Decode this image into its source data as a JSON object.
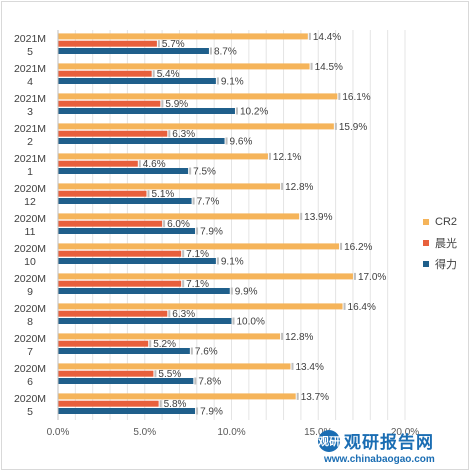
{
  "chart_data": {
    "type": "bar",
    "orientation": "horizontal",
    "categories": [
      [
        "2021M",
        "5"
      ],
      [
        "2021M",
        "4"
      ],
      [
        "2021M",
        "3"
      ],
      [
        "2021M",
        "2"
      ],
      [
        "2021M",
        "1"
      ],
      [
        "2020M",
        "12"
      ],
      [
        "2020M",
        "11"
      ],
      [
        "2020M",
        "10"
      ],
      [
        "2020M",
        "9"
      ],
      [
        "2020M",
        "8"
      ],
      [
        "2020M",
        "7"
      ],
      [
        "2020M",
        "6"
      ],
      [
        "2020M",
        "5"
      ]
    ],
    "series": [
      {
        "name": "CR2",
        "color": "#f5b45a",
        "values": [
          14.4,
          14.5,
          16.1,
          15.9,
          12.1,
          12.8,
          13.9,
          16.2,
          17.0,
          16.4,
          12.8,
          13.4,
          13.7
        ],
        "labels": [
          "14.4%",
          "14.5%",
          "16.1%",
          "15.9%",
          "12.1%",
          "12.8%",
          "13.9%",
          "16.2%",
          "17.0%",
          "16.4%",
          "12.8%",
          "13.4%",
          "13.7%"
        ]
      },
      {
        "name": "晨光",
        "color": "#e8603c",
        "values": [
          5.7,
          5.4,
          5.9,
          6.3,
          4.6,
          5.1,
          6.0,
          7.1,
          7.1,
          6.3,
          5.2,
          5.5,
          5.8
        ],
        "labels": [
          "5.7%",
          "5.4%",
          "5.9%",
          "6.3%",
          "4.6%",
          "5.1%",
          "6.0%",
          "7.1%",
          "7.1%",
          "6.3%",
          "5.2%",
          "5.5%",
          "5.8%"
        ]
      },
      {
        "name": "得力",
        "color": "#1f5f8b",
        "values": [
          8.7,
          9.1,
          10.2,
          9.6,
          7.5,
          7.7,
          7.9,
          9.1,
          9.9,
          10.0,
          7.6,
          7.8,
          7.9
        ],
        "labels": [
          "8.7%",
          "9.1%",
          "10.2%",
          "9.6%",
          "7.5%",
          "7.7%",
          "7.9%",
          "9.1%",
          "9.9%",
          "10.0%",
          "7.6%",
          "7.8%",
          "7.9%"
        ]
      }
    ],
    "x_ticks": [
      "0.0%",
      "5.0%",
      "10.0%",
      "15.0%",
      "20.0%"
    ],
    "xlim": [
      0,
      20
    ],
    "grid": true,
    "legend_position": "right"
  },
  "watermark": {
    "logo_text": "观研",
    "name": "观研报告网",
    "url": "www.chinabaogao.com"
  }
}
